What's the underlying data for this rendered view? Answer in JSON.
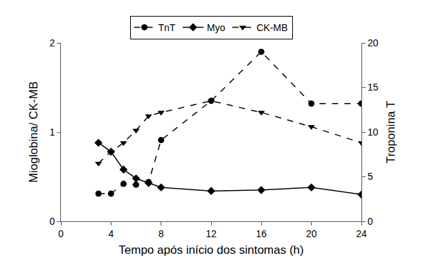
{
  "chart_data": {
    "type": "line",
    "x_label": "Tempo após início dos sintomas (h)",
    "y_label": "Mioglobina/ CK-MB",
    "y2_label": "Troponina T",
    "x": [
      3,
      4,
      5,
      6,
      7,
      8,
      12,
      16,
      20,
      24
    ],
    "series": [
      {
        "name": "TnT",
        "color": "#000000",
        "marker": "circle",
        "line_style": "dash",
        "axis": "y2",
        "values": [
          3.1,
          3.1,
          4.2,
          4.1,
          4.4,
          9.1,
          13.5,
          19.0,
          13.2,
          13.2
        ]
      },
      {
        "name": "Myo",
        "color": "#000000",
        "marker": "diamond",
        "line_style": "solid",
        "values": [
          0.88,
          0.78,
          0.58,
          0.48,
          0.43,
          0.38,
          0.34,
          0.35,
          0.38,
          0.3
        ]
      },
      {
        "name": "CK-MB",
        "color": "#000000",
        "marker": "triangle-down",
        "line_style": "dash",
        "values": [
          0.65,
          0.78,
          0.88,
          1.02,
          1.18,
          1.22,
          1.35,
          1.22,
          1.06,
          0.88
        ]
      }
    ],
    "xlim": [
      0,
      24
    ],
    "xticks": [
      0,
      4,
      8,
      12,
      16,
      20,
      24
    ],
    "ylim": [
      0,
      2
    ],
    "yticks": [
      0,
      1,
      2
    ],
    "y2lim": [
      0,
      20
    ],
    "y2ticks": [
      0,
      5,
      10,
      15,
      20
    ],
    "grid": false,
    "legend": "top"
  }
}
